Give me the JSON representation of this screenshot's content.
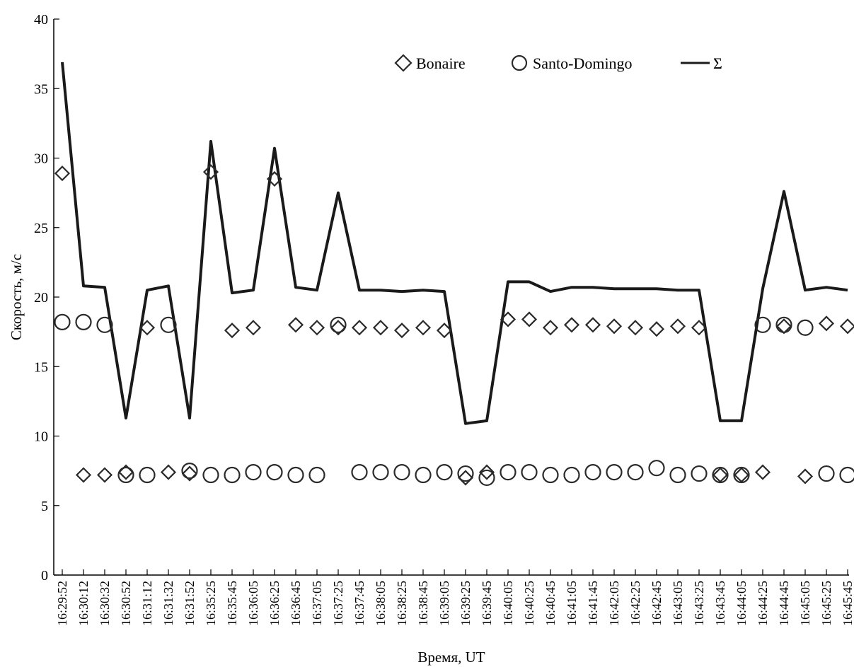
{
  "chart_data": {
    "type": "line",
    "title": "",
    "xlabel": "Время, UT",
    "ylabel": "Скорость, м/с",
    "ylim": [
      0,
      40
    ],
    "yticks": [
      0,
      5,
      10,
      15,
      20,
      25,
      30,
      35,
      40
    ],
    "grid": false,
    "legend_position": "top-right",
    "categories": [
      "16:29:52",
      "16:30:12",
      "16:30:32",
      "16:30:52",
      "16:31:12",
      "16:31:32",
      "16:31:52",
      "16:35:25",
      "16:35:45",
      "16:36:05",
      "16:36:25",
      "16:36:45",
      "16:37:05",
      "16:37:25",
      "16:37:45",
      "16:38:05",
      "16:38:25",
      "16:38:45",
      "16:39:05",
      "16:39:25",
      "16:39:45",
      "16:40:05",
      "16:40:25",
      "16:40:45",
      "16:41:05",
      "16:41:45",
      "16:42:05",
      "16:42:25",
      "16:42:45",
      "16:43:05",
      "16:43:25",
      "16:43:45",
      "16:44:05",
      "16:44:25",
      "16:44:45",
      "16:45:05",
      "16:45:25",
      "16:45:45"
    ],
    "series": [
      {
        "name": "Bonaire",
        "marker": "diamond",
        "points": [
          [
            0,
            28.9
          ],
          [
            1,
            7.2
          ],
          [
            2,
            7.2
          ],
          [
            3,
            7.4
          ],
          [
            4,
            17.8
          ],
          [
            5,
            7.4
          ],
          [
            6,
            7.3
          ],
          [
            7,
            29.0
          ],
          [
            8,
            17.6
          ],
          [
            9,
            17.8
          ],
          [
            10,
            28.5
          ],
          [
            11,
            18.0
          ],
          [
            12,
            17.8
          ],
          [
            13,
            17.8
          ],
          [
            14,
            17.8
          ],
          [
            15,
            17.8
          ],
          [
            16,
            17.6
          ],
          [
            17,
            17.8
          ],
          [
            18,
            17.6
          ],
          [
            19,
            7.0
          ],
          [
            20,
            7.4
          ],
          [
            21,
            18.4
          ],
          [
            22,
            18.4
          ],
          [
            23,
            17.8
          ],
          [
            24,
            18.0
          ],
          [
            25,
            18.0
          ],
          [
            26,
            17.9
          ],
          [
            27,
            17.8
          ],
          [
            28,
            17.7
          ],
          [
            29,
            17.9
          ],
          [
            30,
            17.8
          ],
          [
            31,
            7.2
          ],
          [
            32,
            7.2
          ],
          [
            33,
            7.4
          ],
          [
            34,
            17.9
          ],
          [
            35,
            7.1
          ],
          [
            36,
            18.1
          ],
          [
            37,
            17.9
          ]
        ]
      },
      {
        "name": "Santo-Domingo",
        "marker": "circle",
        "points": [
          [
            0,
            18.2
          ],
          [
            1,
            18.2
          ],
          [
            2,
            18.0
          ],
          [
            3,
            7.2
          ],
          [
            4,
            7.2
          ],
          [
            5,
            18.0
          ],
          [
            6,
            7.5
          ],
          [
            7,
            7.2
          ],
          [
            8,
            7.2
          ],
          [
            9,
            7.4
          ],
          [
            10,
            7.4
          ],
          [
            11,
            7.2
          ],
          [
            12,
            7.2
          ],
          [
            13,
            18.0
          ],
          [
            14,
            7.4
          ],
          [
            15,
            7.4
          ],
          [
            16,
            7.4
          ],
          [
            17,
            7.2
          ],
          [
            18,
            7.4
          ],
          [
            19,
            7.3
          ],
          [
            20,
            7.0
          ],
          [
            21,
            7.4
          ],
          [
            22,
            7.4
          ],
          [
            23,
            7.2
          ],
          [
            24,
            7.2
          ],
          [
            25,
            7.4
          ],
          [
            26,
            7.4
          ],
          [
            27,
            7.4
          ],
          [
            28,
            7.7
          ],
          [
            29,
            7.2
          ],
          [
            30,
            7.3
          ],
          [
            31,
            7.2
          ],
          [
            32,
            7.2
          ],
          [
            33,
            18.0
          ],
          [
            34,
            18.0
          ],
          [
            35,
            17.8
          ],
          [
            36,
            7.3
          ],
          [
            37,
            7.2
          ]
        ]
      },
      {
        "name": "Σ",
        "marker": "line",
        "values": [
          36.9,
          20.8,
          20.7,
          11.3,
          20.5,
          20.8,
          11.3,
          31.2,
          20.3,
          20.5,
          30.7,
          20.7,
          20.5,
          27.5,
          20.5,
          20.5,
          20.4,
          20.5,
          20.4,
          10.9,
          11.1,
          21.1,
          21.1,
          20.4,
          20.7,
          20.7,
          20.6,
          20.6,
          20.6,
          20.5,
          20.5,
          11.1,
          11.1,
          20.6,
          27.6,
          20.5,
          20.7,
          20.5
        ]
      }
    ]
  }
}
